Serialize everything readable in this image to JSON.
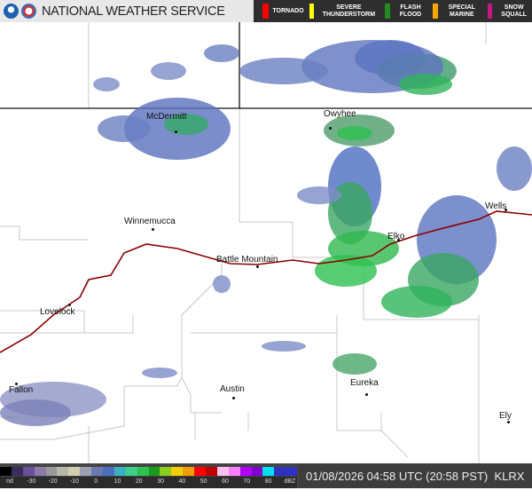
{
  "header": {
    "title": "NATIONAL WEATHER SERVICE",
    "logos": [
      "noaa-logo",
      "nws-logo"
    ]
  },
  "warning_legend": [
    {
      "label": "TORNADO",
      "color": "#ff0000"
    },
    {
      "label": "SEVERE THUNDERSTORM",
      "color": "#ffff00"
    },
    {
      "label": "FLASH FLOOD",
      "color": "#228b22"
    },
    {
      "label": "SPECIAL MARINE",
      "color": "#ffa500"
    },
    {
      "label": "SNOW SQUALL",
      "color": "#c71585"
    }
  ],
  "cities": [
    "McDermitt",
    "Owyhee",
    "Winnemucca",
    "Battle Mountain",
    "Elko",
    "Wells",
    "Lovelock",
    "Fallon",
    "Austin",
    "Eureka",
    "Ely"
  ],
  "colorbar": {
    "ticks": [
      "nd",
      "-30",
      "-20",
      "-10",
      "0",
      "10",
      "20",
      "30",
      "40",
      "50",
      "60",
      "70",
      "80",
      "dBZ"
    ]
  },
  "timestamp": "01/08/2026 04:58 UTC (20:58 PST)",
  "radar_id": "KLRX"
}
